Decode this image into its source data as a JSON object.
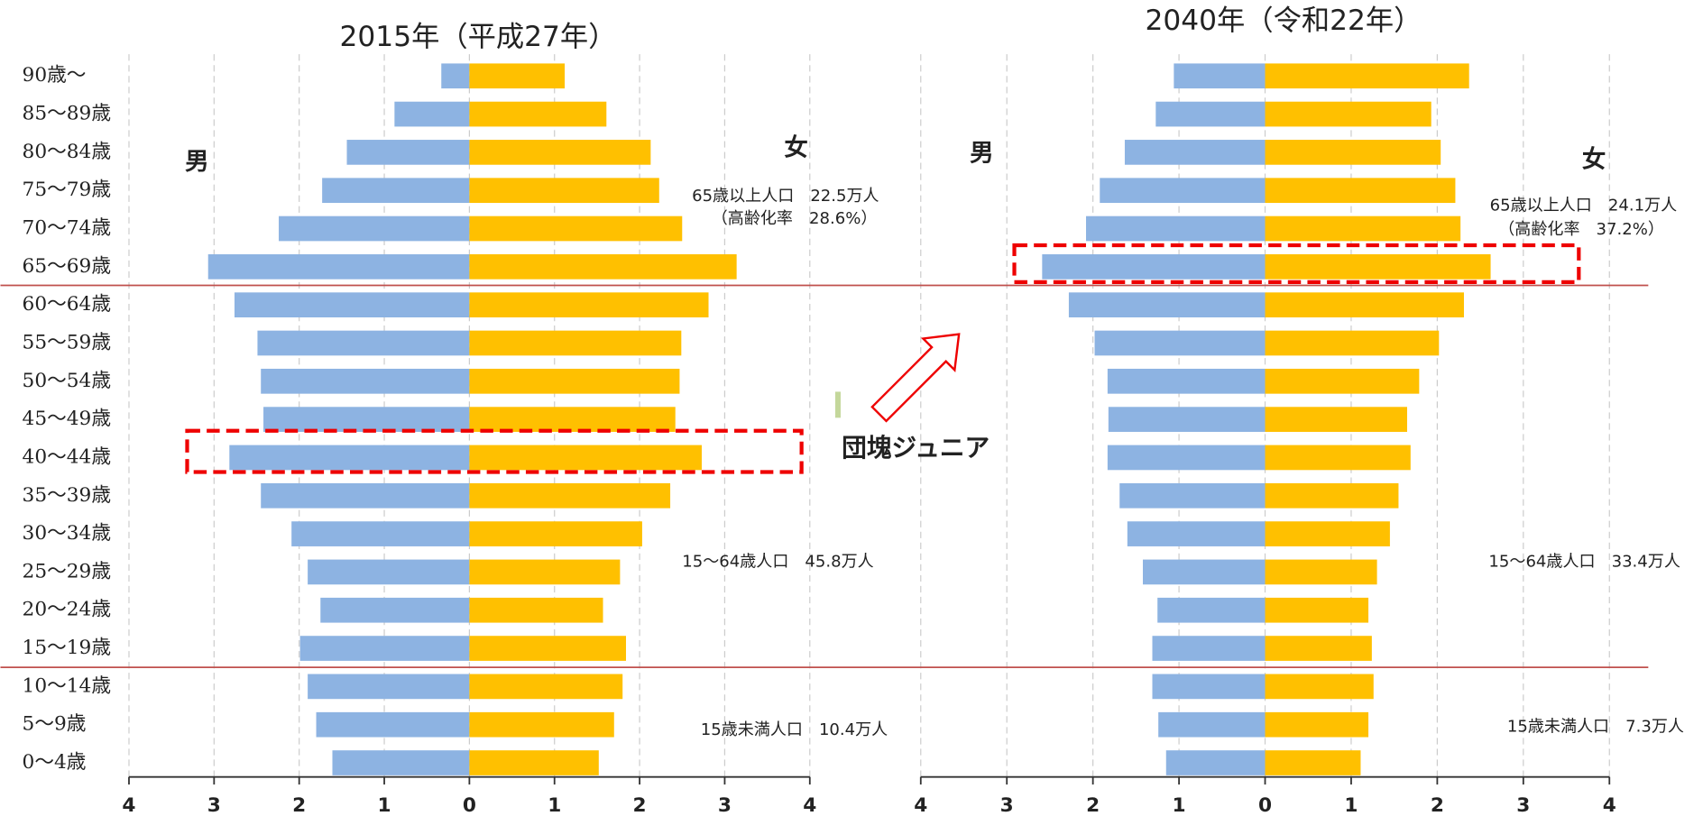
{
  "chart_data": [
    {
      "type": "pyramid",
      "title": "2015年（平成27年）",
      "categories": [
        "90歳〜",
        "85〜89歳",
        "80〜84歳",
        "75〜79歳",
        "70〜74歳",
        "65〜69歳",
        "60〜64歳",
        "55〜59歳",
        "50〜54歳",
        "45〜49歳",
        "40〜44歳",
        "35〜39歳",
        "30〜34歳",
        "25〜29歳",
        "20〜24歳",
        "15〜19歳",
        "10〜14歳",
        "5〜9歳",
        "0〜4歳"
      ],
      "series": [
        {
          "name": "男",
          "color": "#8db3e2",
          "values": [
            0.33,
            0.88,
            1.44,
            1.73,
            2.24,
            3.07,
            2.76,
            2.49,
            2.45,
            2.42,
            2.82,
            2.45,
            2.09,
            1.9,
            1.75,
            1.99,
            1.9,
            1.8,
            1.61
          ]
        },
        {
          "name": "女",
          "color": "#ffc000",
          "values": [
            1.12,
            1.61,
            2.13,
            2.23,
            2.5,
            3.14,
            2.81,
            2.49,
            2.47,
            2.42,
            2.73,
            2.36,
            2.03,
            1.77,
            1.57,
            1.84,
            1.8,
            1.7,
            1.52
          ]
        }
      ],
      "xlim": [
        -4,
        4
      ],
      "xticks": [
        {
          "value": -4,
          "label": "4"
        },
        {
          "value": -3,
          "label": "3"
        },
        {
          "value": -2,
          "label": "2"
        },
        {
          "value": -1,
          "label": "1"
        },
        0,
        1,
        2,
        3,
        4
      ],
      "grid": true,
      "annotations": [
        "65歳以上人口　22.5万人",
        "（高齢化率　28.6%）",
        "15〜64歳人口　45.8万人",
        "15歳未満人口　10.4万人"
      ]
    },
    {
      "type": "pyramid",
      "title": "2040年（令和22年）",
      "series": [
        {
          "name": "男",
          "color": "#8db3e2",
          "values": [
            1.06,
            1.27,
            1.63,
            1.92,
            2.08,
            2.59,
            2.28,
            1.98,
            1.83,
            1.82,
            1.83,
            1.69,
            1.6,
            1.42,
            1.25,
            1.31,
            1.31,
            1.24,
            1.15
          ]
        },
        {
          "name": "女",
          "color": "#ffc000",
          "values": [
            2.37,
            1.93,
            2.04,
            2.21,
            2.27,
            2.62,
            2.31,
            2.02,
            1.79,
            1.65,
            1.69,
            1.55,
            1.45,
            1.3,
            1.2,
            1.24,
            1.26,
            1.2,
            1.11
          ]
        }
      ],
      "xlim": [
        -4,
        4
      ],
      "xticks": [
        {
          "value": -4,
          "label": "4"
        },
        {
          "value": -3,
          "label": "3"
        },
        {
          "value": -2,
          "label": "2"
        },
        {
          "value": -1,
          "label": "1"
        },
        0,
        1,
        2,
        3,
        4
      ],
      "grid": true,
      "annotations": [
        "65歳以上人口　24.1万人",
        "（高齢化率　37.2%）",
        "15〜64歳人口　33.4万人",
        "15歳未満人口　7.3万人"
      ]
    }
  ],
  "callout": "団塊ジュニア"
}
